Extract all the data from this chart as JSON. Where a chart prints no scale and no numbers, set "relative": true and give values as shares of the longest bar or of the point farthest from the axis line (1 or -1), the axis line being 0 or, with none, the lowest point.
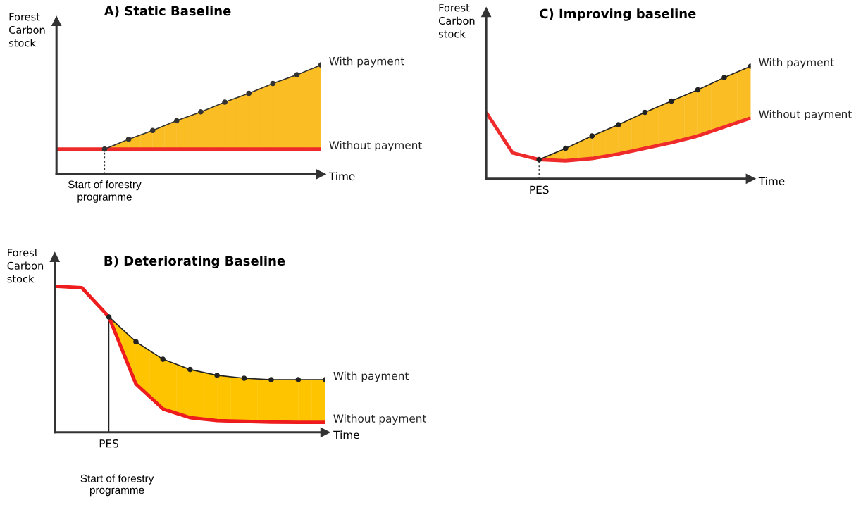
{
  "chart_data": [
    {
      "type": "line",
      "title": "A) Static Baseline",
      "xlabel": "Time",
      "ylabel": "Forest\nCarbon\nstock",
      "relative": true,
      "categories": [
        null,
        null,
        null,
        null,
        null,
        null,
        null,
        null,
        null,
        null,
        null,
        null
      ],
      "series": [
        {
          "name": "Without payment",
          "color": "#ee2a2a",
          "line_style": "solid",
          "marker": "none",
          "values": [
            0.23,
            0.23,
            0.23,
            0.23,
            0.23,
            0.23,
            0.23,
            0.23,
            0.23,
            0.23,
            0.23,
            0.23
          ]
        },
        {
          "name": "With payment",
          "color": "#333333",
          "line_style": "solid",
          "marker": "circle",
          "colors": [
            null,
            null,
            "#fbbd24",
            "#fbbd24",
            "#fbbd24",
            "#fbbd24",
            "#fbbd24",
            "#fbbd24",
            "#fbbd24",
            "#fbbd24",
            "#fbbd24",
            "#fbbd24"
          ],
          "values": [
            null,
            null,
            0.23,
            0.32,
            0.4,
            0.49,
            0.57,
            0.66,
            0.74,
            0.83,
            0.91,
            1.0
          ],
          "lower": [
            null,
            null,
            0.23,
            0.23,
            0.23,
            0.23,
            0.23,
            0.23,
            0.23,
            0.23,
            0.23,
            0.23
          ],
          "upper": [
            null,
            null,
            0.23,
            0.32,
            0.4,
            0.49,
            0.57,
            0.66,
            0.74,
            0.83,
            0.91,
            1.0
          ]
        }
      ],
      "ref_lines": [
        {
          "axis": "x",
          "label": "Start of forestry\nprogramme",
          "line_style": "dashed",
          "color": "#333333"
        }
      ]
    },
    {
      "type": "line",
      "title": "C) Improving baseline",
      "xlabel": "Time",
      "ylabel": "Forest\nCarbon\nstock",
      "relative": true,
      "categories": [
        null,
        null,
        null,
        null,
        null,
        null,
        null,
        null,
        null,
        null,
        null
      ],
      "series": [
        {
          "name": "Without payment",
          "color": "#ee2a2a",
          "line_style": "solid",
          "marker": "none",
          "values": [
            0.59,
            0.23,
            0.17,
            0.16,
            0.18,
            0.22,
            0.27,
            0.32,
            0.38,
            0.46,
            0.54
          ]
        },
        {
          "name": "With payment",
          "color": "#222222",
          "line_style": "solid",
          "marker": "circle",
          "colors": [
            null,
            null,
            "#fbbd24",
            "#fbbd24",
            "#fbbd24",
            "#fbbd24",
            "#fbbd24",
            "#fbbd24",
            "#fbbd24",
            "#fbbd24",
            "#fbbd24"
          ],
          "values": [
            null,
            null,
            0.17,
            0.27,
            0.38,
            0.48,
            0.59,
            0.69,
            0.79,
            0.9,
            1.0
          ],
          "lower": [
            null,
            null,
            0.17,
            0.16,
            0.18,
            0.22,
            0.27,
            0.32,
            0.38,
            0.46,
            0.54
          ],
          "upper": [
            null,
            null,
            0.17,
            0.27,
            0.38,
            0.48,
            0.59,
            0.69,
            0.79,
            0.9,
            1.0
          ]
        }
      ],
      "ref_lines": [
        {
          "axis": "x",
          "label": "PES",
          "line_style": "dashed",
          "color": "#333333"
        }
      ]
    },
    {
      "type": "line",
      "title": "B) Deteriorating Baseline",
      "xlabel": "Time",
      "ylabel": "Forest\nCarbon\nstock",
      "relative": true,
      "categories": [
        null,
        null,
        null,
        null,
        null,
        null,
        null,
        null,
        null,
        null,
        null
      ],
      "series": [
        {
          "name": "Without payment",
          "color": "#ee1c1c",
          "line_style": "solid",
          "marker": "none",
          "values": [
            1.0,
            0.99,
            0.79,
            0.33,
            0.16,
            0.1,
            0.08,
            0.075,
            0.07,
            0.068,
            0.068
          ]
        },
        {
          "name": "With payment",
          "color": "#222222",
          "line_style": "solid",
          "marker": "circle",
          "colors": [
            null,
            null,
            "#ffc400",
            "#ffc400",
            "#ffc400",
            "#ffc400",
            "#ffc400",
            "#ffc400",
            "#ffc400",
            "#ffc400",
            "#ffc400"
          ],
          "values": [
            null,
            null,
            0.79,
            0.62,
            0.5,
            0.43,
            0.39,
            0.37,
            0.36,
            0.36,
            0.36
          ],
          "lower": [
            null,
            null,
            0.79,
            0.33,
            0.16,
            0.1,
            0.08,
            0.075,
            0.07,
            0.068,
            0.068
          ],
          "upper": [
            null,
            null,
            0.79,
            0.62,
            0.5,
            0.43,
            0.39,
            0.37,
            0.36,
            0.36,
            0.36
          ]
        }
      ],
      "ref_lines": [
        {
          "axis": "x",
          "label": "PES",
          "line_style": "solid",
          "color": "#222222"
        }
      ],
      "annotations": [
        "Start of forestry\nprogramme"
      ]
    }
  ]
}
